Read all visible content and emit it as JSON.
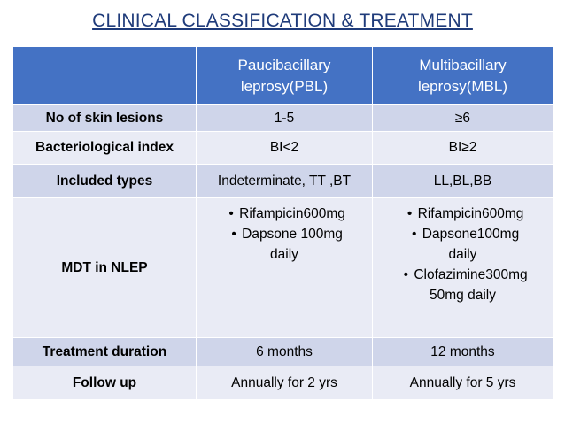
{
  "title": "CLINICAL CLASSIFICATION & TREATMENT",
  "columns": [
    "",
    "Paucibacillary leprosy(PBL)",
    "Multibacillary leprosy(MBL)"
  ],
  "header": {
    "pbl_line1": "Paucibacillary",
    "pbl_line2": "leprosy(PBL)",
    "mbl_line1": "Multibacillary",
    "mbl_line2": "leprosy(MBL)"
  },
  "rows": {
    "lesions": {
      "label": "No of skin lesions",
      "pbl": "1-5",
      "mbl": "≥6"
    },
    "bi": {
      "label": "Bacteriological index",
      "pbl": "BI<2",
      "mbl": "BI≥2"
    },
    "types": {
      "label": "Included types",
      "pbl": "Indeterminate, TT ,BT",
      "mbl": "LL,BL,BB"
    },
    "mdt": {
      "label": "MDT in NLEP",
      "pbl": [
        "Rifampicin600mg",
        "Dapsone 100mg",
        "daily"
      ],
      "mbl": [
        "Rifampicin600mg",
        "Dapsone100mg",
        "daily",
        "Clofazimine300mg",
        "50mg daily"
      ]
    },
    "duration": {
      "label": "Treatment duration",
      "pbl": "6 months",
      "mbl": "12 months"
    },
    "followup": {
      "label": "Follow up",
      "pbl": "Annually for 2 yrs",
      "mbl": "Annually for 5 yrs"
    }
  },
  "bullet": "•",
  "colors": {
    "header": "#4472c4",
    "band_dark": "#cfd5ea",
    "band_light": "#e9ebf5",
    "title": "#1f3b7a"
  }
}
